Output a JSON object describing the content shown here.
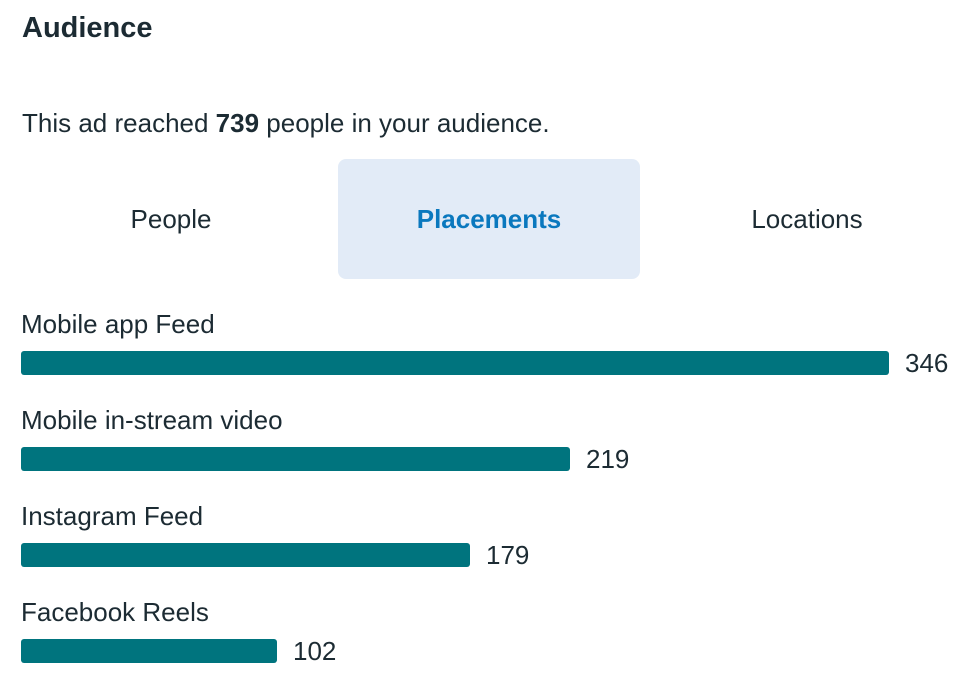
{
  "header": {
    "title": "Audience"
  },
  "summary": {
    "prefix": "This ad reached ",
    "count": "739",
    "suffix": " people in your audience."
  },
  "tabs": [
    {
      "label": "People",
      "active": false
    },
    {
      "label": "Placements",
      "active": true
    },
    {
      "label": "Locations",
      "active": false
    }
  ],
  "colors": {
    "bar": "#00747e",
    "active_tab_bg": "#e2ebf7",
    "active_tab_text": "#0a78be",
    "text": "#1c2b33"
  },
  "chart_data": {
    "type": "bar",
    "orientation": "horizontal",
    "categories": [
      "Mobile app Feed",
      "Mobile in-stream video",
      "Instagram Feed",
      "Facebook Reels"
    ],
    "values": [
      346,
      219,
      179,
      102
    ]
  }
}
